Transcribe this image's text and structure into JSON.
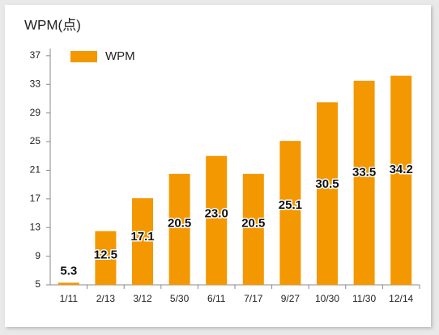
{
  "chart_data": {
    "type": "bar",
    "title": "WPM(点)",
    "categories": [
      "1/11",
      "2/13",
      "3/12",
      "5/30",
      "6/11",
      "7/17",
      "9/27",
      "10/30",
      "11/30",
      "12/14"
    ],
    "series": [
      {
        "name": "WPM",
        "color": "#f39800",
        "values": [
          5.3,
          12.5,
          17.1,
          20.5,
          23,
          20.5,
          25.1,
          30.5,
          33.5,
          34.2
        ],
        "value_labels": [
          "5.3",
          "12.5",
          "17.1",
          "20.5",
          "23.0",
          "20.5",
          "25.1",
          "30.5",
          "33.5",
          "34.2"
        ]
      }
    ],
    "ylim": [
      5,
      38
    ],
    "yticks": [
      5,
      9,
      13,
      17,
      21,
      25,
      29,
      33,
      37
    ],
    "grid": false,
    "legend": "top-left"
  }
}
